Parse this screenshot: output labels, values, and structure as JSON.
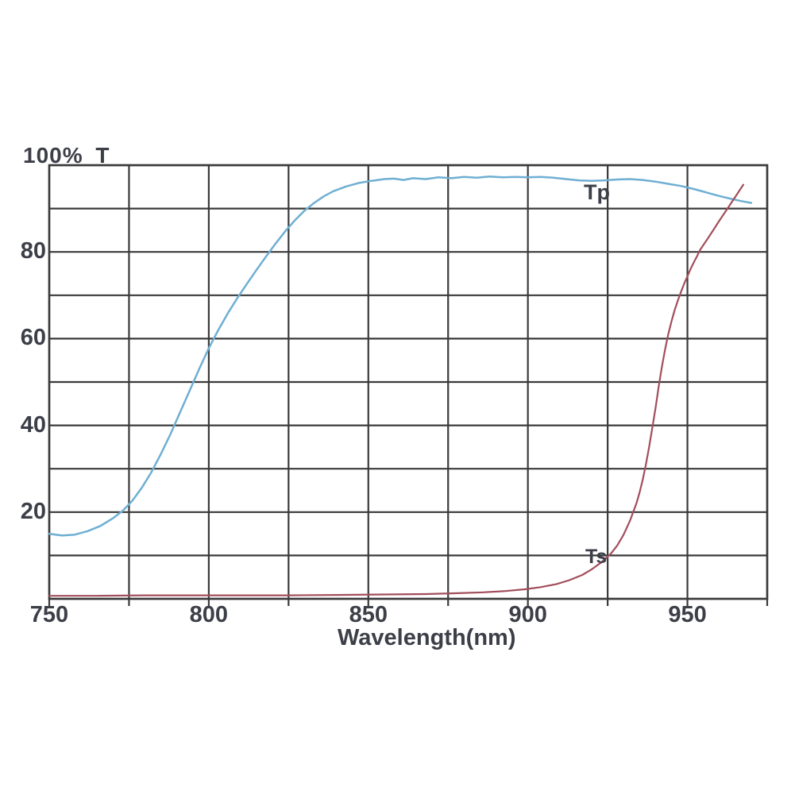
{
  "chart": {
    "y_axis_title": "100% T",
    "xlabel": "Wavelength(nm)",
    "colors": {
      "grid": "#3a3a3a",
      "frame": "#3a3a3a",
      "text": "#3d3f48",
      "tp": "#6fafd2",
      "ts": "#a24e5b",
      "background": "#ffffff"
    }
  },
  "chart_data": {
    "type": "line",
    "title": "",
    "xlabel": "Wavelength(nm)",
    "ylabel": "100% T",
    "xlim": [
      750,
      975
    ],
    "ylim": [
      0,
      100
    ],
    "grid": "on",
    "x_gridline_step_nm": 25,
    "y_gridline_step_pct": 10,
    "x_ticks": [
      {
        "value": 750,
        "label": "750"
      },
      {
        "value": 800,
        "label": "800"
      },
      {
        "value": 850,
        "label": "850"
      },
      {
        "value": 900,
        "label": "900"
      },
      {
        "value": 950,
        "label": "950"
      }
    ],
    "y_ticks": [
      {
        "value": 20,
        "label": "20"
      },
      {
        "value": 40,
        "label": "40"
      },
      {
        "value": 60,
        "label": "60"
      },
      {
        "value": 80,
        "label": "80"
      }
    ],
    "series": [
      {
        "name": "Tp",
        "color": "#6fafd2",
        "points": [
          [
            750,
            15.0
          ],
          [
            754,
            14.6
          ],
          [
            758,
            14.8
          ],
          [
            762,
            15.6
          ],
          [
            766,
            16.8
          ],
          [
            770,
            18.6
          ],
          [
            773,
            20.3
          ],
          [
            776,
            22.6
          ],
          [
            779,
            25.6
          ],
          [
            782,
            29.2
          ],
          [
            785,
            33.4
          ],
          [
            788,
            38.0
          ],
          [
            791,
            43.0
          ],
          [
            794,
            48.0
          ],
          [
            797,
            53.0
          ],
          [
            800,
            57.8
          ],
          [
            803,
            62.0
          ],
          [
            806,
            65.9
          ],
          [
            809,
            69.4
          ],
          [
            812,
            72.7
          ],
          [
            815,
            75.9
          ],
          [
            818,
            79.0
          ],
          [
            821,
            82.0
          ],
          [
            824,
            84.8
          ],
          [
            827,
            87.3
          ],
          [
            830,
            89.5
          ],
          [
            833,
            91.3
          ],
          [
            836,
            92.8
          ],
          [
            839,
            94.0
          ],
          [
            843,
            95.1
          ],
          [
            847,
            95.9
          ],
          [
            851,
            96.4
          ],
          [
            855,
            96.8
          ],
          [
            858,
            96.9
          ],
          [
            861,
            96.6
          ],
          [
            864,
            97.0
          ],
          [
            868,
            96.8
          ],
          [
            872,
            97.2
          ],
          [
            876,
            97.0
          ],
          [
            880,
            97.3
          ],
          [
            884,
            97.1
          ],
          [
            888,
            97.4
          ],
          [
            892,
            97.2
          ],
          [
            896,
            97.3
          ],
          [
            900,
            97.2
          ],
          [
            904,
            97.3
          ],
          [
            908,
            97.1
          ],
          [
            912,
            96.8
          ],
          [
            916,
            96.5
          ],
          [
            920,
            96.4
          ],
          [
            924,
            96.5
          ],
          [
            928,
            96.7
          ],
          [
            932,
            96.8
          ],
          [
            936,
            96.6
          ],
          [
            940,
            96.2
          ],
          [
            944,
            95.7
          ],
          [
            948,
            95.2
          ],
          [
            952,
            94.5
          ],
          [
            956,
            93.7
          ],
          [
            960,
            92.9
          ],
          [
            964,
            92.2
          ],
          [
            967,
            91.7
          ],
          [
            970,
            91.3
          ]
        ]
      },
      {
        "name": "Ts",
        "color": "#a24e5b",
        "points": [
          [
            750,
            0.7
          ],
          [
            765,
            0.7
          ],
          [
            780,
            0.8
          ],
          [
            795,
            0.8
          ],
          [
            810,
            0.8
          ],
          [
            825,
            0.8
          ],
          [
            840,
            0.9
          ],
          [
            855,
            1.0
          ],
          [
            868,
            1.1
          ],
          [
            878,
            1.3
          ],
          [
            886,
            1.5
          ],
          [
            893,
            1.8
          ],
          [
            899,
            2.2
          ],
          [
            904,
            2.7
          ],
          [
            909,
            3.4
          ],
          [
            913,
            4.3
          ],
          [
            917,
            5.5
          ],
          [
            920,
            6.8
          ],
          [
            923,
            8.4
          ],
          [
            926,
            10.4
          ],
          [
            928,
            12.3
          ],
          [
            930,
            14.8
          ],
          [
            932,
            18.0
          ],
          [
            934,
            22.0
          ],
          [
            935,
            24.5
          ],
          [
            936,
            27.5
          ],
          [
            937,
            31.0
          ],
          [
            938,
            35.0
          ],
          [
            939,
            39.5
          ],
          [
            940,
            44.0
          ],
          [
            941,
            49.0
          ],
          [
            942,
            53.5
          ],
          [
            943,
            57.5
          ],
          [
            944,
            61.0
          ],
          [
            945,
            64.0
          ],
          [
            946,
            66.6
          ],
          [
            947,
            68.8
          ],
          [
            948,
            70.8
          ],
          [
            949,
            72.7
          ],
          [
            950,
            74.4
          ],
          [
            951,
            76.1
          ],
          [
            952,
            77.6
          ],
          [
            953,
            79.0
          ],
          [
            954,
            80.5
          ],
          [
            956,
            82.7
          ],
          [
            958,
            84.9
          ],
          [
            960,
            87.2
          ],
          [
            962,
            89.4
          ],
          [
            964,
            91.6
          ],
          [
            966,
            93.8
          ],
          [
            967.5,
            95.5
          ]
        ]
      }
    ]
  }
}
